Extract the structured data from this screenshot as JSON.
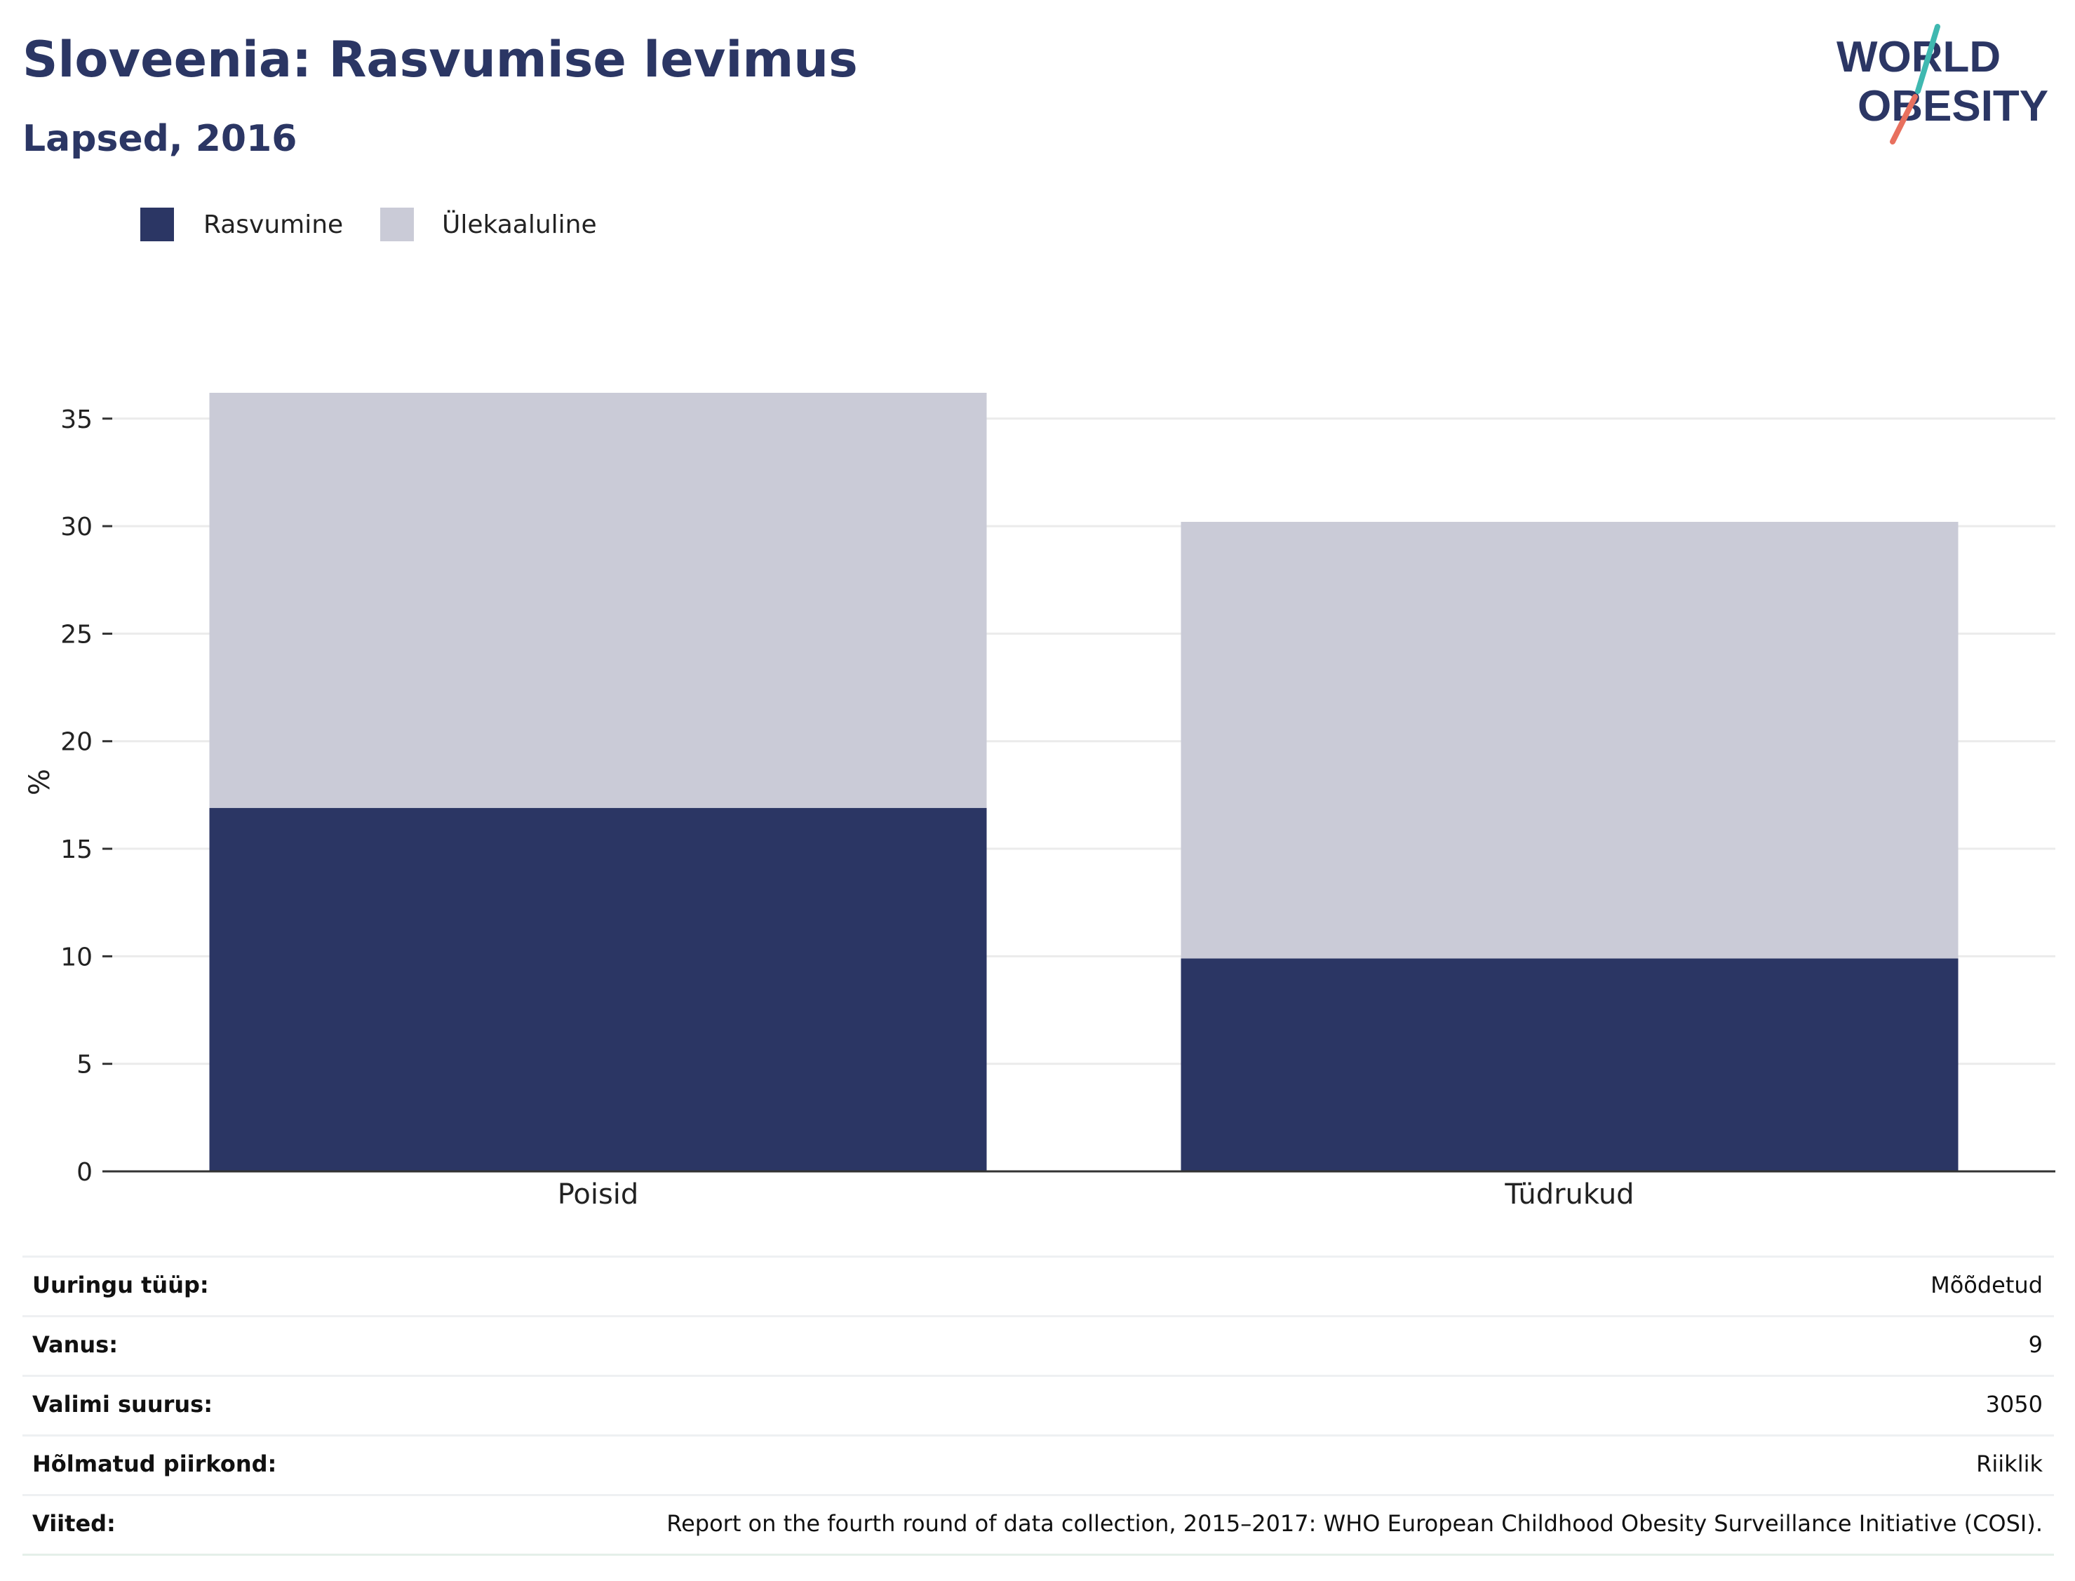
{
  "title": "Sloveenia: Rasvumise levimus",
  "subtitle": "Lapsed, 2016",
  "logo": {
    "line1": "WORLD",
    "line2": "OBESITY"
  },
  "colors": {
    "obesity": "#2b3664",
    "overweight": "#cacbd7",
    "title": "#2b3664",
    "logo_teal": "#3fb8b0",
    "logo_coral": "#e8705e"
  },
  "chart_data": {
    "type": "bar",
    "stacked": true,
    "categories": [
      "Poisid",
      "Tüdrukud"
    ],
    "series": [
      {
        "name": "Rasvumine",
        "values": [
          16.9,
          9.9
        ],
        "color": "#2b3664"
      },
      {
        "name": "Ülekaaluline",
        "values": [
          19.3,
          20.3
        ],
        "color": "#cacbd7"
      }
    ],
    "ylabel": "%",
    "xlabel": "",
    "yticks": [
      0,
      5,
      10,
      15,
      20,
      25,
      30,
      35
    ],
    "ylim": [
      0,
      36.2
    ],
    "grid": true,
    "legend": "top-left"
  },
  "info": [
    {
      "label": "Uuringu tüüp:",
      "value": "Mõõdetud"
    },
    {
      "label": "Vanus:",
      "value": "9"
    },
    {
      "label": "Valimi suurus:",
      "value": "3050"
    },
    {
      "label": "Hõlmatud piirkond:",
      "value": "Riiklik"
    },
    {
      "label": "Viited:",
      "value": "Report on the fourth round of data collection, 2015–2017: WHO European Childhood Obesity Surveillance Initiative (COSI)."
    }
  ]
}
